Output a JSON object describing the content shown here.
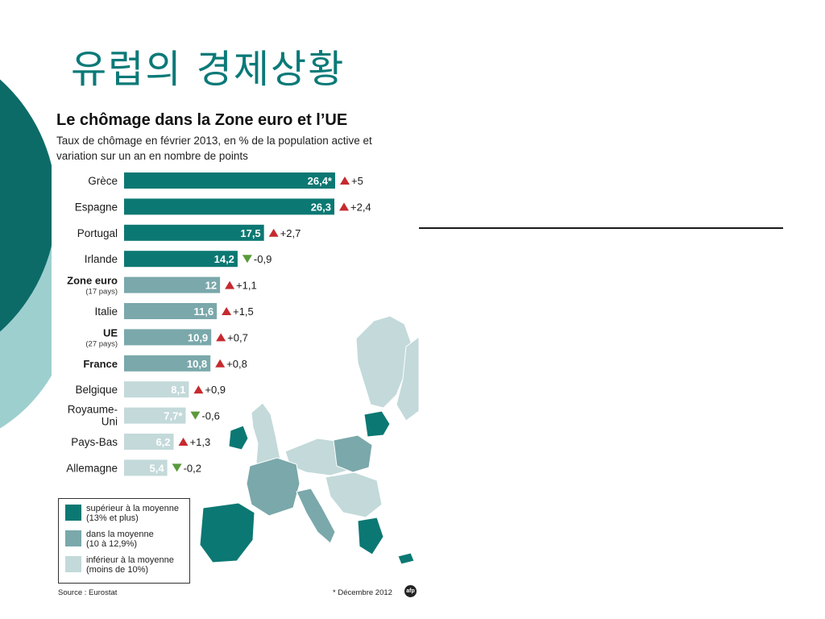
{
  "slide": {
    "title": "유럽의 경제상황"
  },
  "chart_data": {
    "type": "bar",
    "title": "Le chômage dans la Zone euro et l’UE",
    "subtitle": "Taux de chômage en février 2013, en % de la population active et variation sur un an en nombre de points",
    "categories": [
      "Grèce",
      "Espagne",
      "Portugal",
      "Irlande",
      "Zone euro",
      "Italie",
      "UE",
      "France",
      "Belgique",
      "Royaume-Uni",
      "Pays-Bas",
      "Allemagne"
    ],
    "category_sublabels": [
      "",
      "",
      "",
      "",
      "(17 pays)",
      "",
      "(27 pays)",
      "",
      "",
      "",
      "",
      ""
    ],
    "values": [
      26.4,
      26.3,
      17.5,
      14.2,
      12,
      11.6,
      10.9,
      10.8,
      8.1,
      7.7,
      6.2,
      5.4
    ],
    "value_labels": [
      "26,4*",
      "26,3",
      "17,5",
      "14,2",
      "12",
      "11,6",
      "10,9",
      "10,8",
      "8,1",
      "7,7*",
      "6,2",
      "5,4"
    ],
    "changes": [
      5,
      2.4,
      2.7,
      -0.9,
      1.1,
      1.5,
      0.7,
      0.8,
      0.9,
      -0.6,
      1.3,
      -0.2
    ],
    "change_labels": [
      "+5",
      "+2,4",
      "+2,7",
      "-0,9",
      "+1,1",
      "+1,5",
      "+0,7",
      "+0,8",
      "+0,9",
      "-0,6",
      "+1,3",
      "-0,2"
    ],
    "groups": [
      "high",
      "high",
      "high",
      "high",
      "mid",
      "mid",
      "mid",
      "mid",
      "low",
      "low",
      "low",
      "low"
    ],
    "bold_categories": [
      "Zone euro",
      "UE",
      "France"
    ],
    "xlim": [
      0,
      26.4
    ],
    "grid": false,
    "legend": [
      {
        "group": "high",
        "label": "supérieur à la moyenne",
        "detail": "(13% et plus)"
      },
      {
        "group": "mid",
        "label": "dans la moyenne",
        "detail": "(10 à 12,9%)"
      },
      {
        "group": "low",
        "label": "inférieur à la moyenne",
        "detail": "(moins de 10%)"
      }
    ],
    "legend_placement": "bottom-left",
    "colors": {
      "high": "#0c7873",
      "mid": "#7aa8ab",
      "low": "#c3d9da",
      "up": "#c62a2f",
      "down": "#5a9a3a"
    },
    "source": "Source : Eurostat",
    "footnote": "* Décembre 2012",
    "logo_text": "afp"
  },
  "theme": {
    "title_color": "#0a7a78",
    "circle_dark": "#0d6b67",
    "circle_light": "#9ecfcf"
  }
}
